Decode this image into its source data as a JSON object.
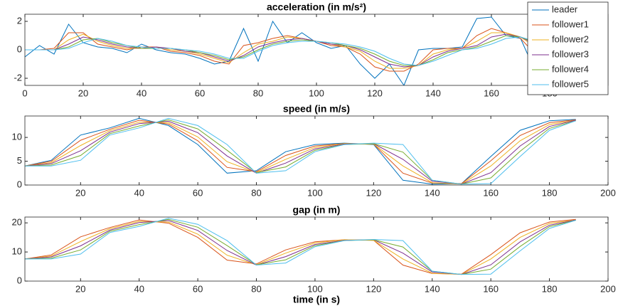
{
  "chart_data": [
    {
      "type": "line",
      "title": "acceleration (in m/s²)",
      "x": [
        0,
        5,
        10,
        15,
        20,
        25,
        30,
        35,
        40,
        45,
        50,
        55,
        60,
        65,
        70,
        75,
        80,
        85,
        90,
        95,
        100,
        105,
        110,
        115,
        120,
        125,
        130,
        135,
        140,
        145,
        150,
        155,
        160,
        165,
        170,
        175,
        180,
        185,
        188
      ],
      "xlim": [
        0,
        200
      ],
      "xticks": [
        0,
        20,
        40,
        60,
        80,
        100,
        120,
        140,
        160,
        180
      ],
      "ylim": [
        -2.5,
        2.5
      ],
      "yticks": [
        -2,
        0,
        2
      ],
      "legend": "northeast",
      "series": [
        {
          "name": "leader",
          "color": "#0072BD",
          "values": [
            -0.5,
            0.3,
            -0.3,
            1.8,
            0.5,
            0.2,
            0.1,
            -0.2,
            0.4,
            0,
            -0.2,
            -0.3,
            -0.6,
            -1,
            -0.8,
            1.5,
            -0.8,
            2,
            0.5,
            1.2,
            0.5,
            0.1,
            0.3,
            -1,
            -2,
            -1,
            -2.5,
            0,
            0.1,
            0.1,
            0.2,
            2.2,
            2.3,
            1,
            0.8,
            -1.5,
            0.5,
            0.3,
            0
          ]
        },
        {
          "name": "follower1",
          "color": "#D95319",
          "values": [
            0,
            0,
            0.1,
            1.2,
            1.2,
            0.4,
            0.2,
            0,
            0.2,
            0.2,
            -0.1,
            -0.2,
            -0.4,
            -0.8,
            -1,
            0.3,
            0.5,
            0.8,
            1,
            0.8,
            0.6,
            0.3,
            0.2,
            -0.3,
            -1.2,
            -1.5,
            -1.5,
            -1,
            0,
            0.1,
            0.1,
            1,
            1.5,
            1.2,
            0.8,
            -0.3,
            -0.2,
            0.3,
            0.1
          ]
        },
        {
          "name": "follower2",
          "color": "#EDB120",
          "values": [
            0,
            0,
            0,
            0.7,
            1.1,
            0.6,
            0.3,
            0.1,
            0.1,
            0.2,
            0,
            -0.1,
            -0.3,
            -0.6,
            -0.9,
            -0.2,
            0.4,
            0.6,
            0.9,
            0.8,
            0.6,
            0.4,
            0.2,
            -0.1,
            -0.8,
            -1.3,
            -1.3,
            -1.1,
            -0.3,
            0,
            0.1,
            0.6,
            1.2,
            1.2,
            0.9,
            0.2,
            -0.3,
            0.1,
            0.2
          ]
        },
        {
          "name": "follower3",
          "color": "#7E2F8E",
          "values": [
            0,
            0,
            0,
            0.4,
            0.9,
            0.7,
            0.4,
            0.2,
            0.1,
            0.2,
            0.1,
            -0.1,
            -0.2,
            -0.5,
            -0.8,
            -0.4,
            0.2,
            0.5,
            0.7,
            0.8,
            0.6,
            0.4,
            0.3,
            0,
            -0.5,
            -1,
            -1.2,
            -1.1,
            -0.5,
            -0.1,
            0.1,
            0.3,
            0.9,
            1.1,
            0.9,
            0.4,
            -0.1,
            0,
            0.2
          ]
        },
        {
          "name": "follower4",
          "color": "#77AC30",
          "values": [
            0,
            0,
            0,
            0.2,
            0.7,
            0.8,
            0.5,
            0.3,
            0.1,
            0.1,
            0.1,
            0,
            -0.2,
            -0.4,
            -0.7,
            -0.5,
            0,
            0.4,
            0.6,
            0.7,
            0.6,
            0.5,
            0.3,
            0.1,
            -0.3,
            -0.8,
            -1.1,
            -1.1,
            -0.7,
            -0.2,
            0,
            0.2,
            0.6,
            1,
            0.9,
            0.5,
            0.1,
            0,
            0.1
          ]
        },
        {
          "name": "follower5",
          "color": "#4DBEEE",
          "values": [
            0,
            0,
            0,
            0.1,
            0.5,
            0.8,
            0.6,
            0.3,
            0.2,
            0.1,
            0.1,
            0,
            -0.1,
            -0.3,
            -0.6,
            -0.6,
            -0.1,
            0.3,
            0.5,
            0.6,
            0.6,
            0.5,
            0.4,
            0.2,
            -0.1,
            -0.6,
            -1,
            -1.1,
            -0.8,
            -0.4,
            0,
            0.1,
            0.4,
            0.8,
            0.9,
            0.6,
            0.2,
            0,
            0.1
          ]
        }
      ]
    },
    {
      "type": "line",
      "title": "speed (in m/s)",
      "x": [
        1,
        10,
        20,
        30,
        40,
        50,
        60,
        70,
        80,
        90,
        100,
        110,
        120,
        130,
        140,
        150,
        160,
        170,
        180,
        189
      ],
      "xlim": [
        1,
        200
      ],
      "xticks": [
        20,
        40,
        60,
        80,
        100,
        120,
        140,
        160,
        180,
        200
      ],
      "ylim": [
        0,
        14.5
      ],
      "yticks": [
        0,
        5,
        10
      ],
      "series": [
        {
          "color": "#0072BD",
          "values": [
            4,
            5.2,
            10.5,
            12,
            14,
            12.5,
            8.5,
            2.5,
            3,
            7,
            8.5,
            8.8,
            8.5,
            1,
            0.2,
            0.3,
            6,
            11.5,
            13.5,
            13.8
          ]
        },
        {
          "color": "#D95319",
          "values": [
            4,
            5.0,
            9.4,
            11.7,
            13.6,
            12.8,
            9.3,
            3.7,
            2.8,
            6.2,
            8.2,
            8.7,
            8.6,
            2.5,
            0.4,
            0.3,
            5.1,
            10.4,
            13.1,
            13.7
          ]
        },
        {
          "color": "#EDB120",
          "values": [
            4,
            4.7,
            8.3,
            11.4,
            13.2,
            13.1,
            10.1,
            4.9,
            2.6,
            5.4,
            7.9,
            8.7,
            8.6,
            4.0,
            0.5,
            0.2,
            4.0,
            9.3,
            12.7,
            13.6
          ]
        },
        {
          "color": "#7E2F8E",
          "values": [
            4,
            4.5,
            7.2,
            11.1,
            12.9,
            13.4,
            11.0,
            6.1,
            2.5,
            4.6,
            7.6,
            8.6,
            8.7,
            5.4,
            0.8,
            0.2,
            2.6,
            8.2,
            12.3,
            13.6
          ]
        },
        {
          "color": "#77AC30",
          "values": [
            4,
            4.2,
            6.2,
            10.8,
            12.4,
            13.7,
            11.8,
            7.3,
            2.6,
            3.8,
            7.3,
            8.5,
            8.7,
            6.9,
            1.0,
            0.2,
            1.5,
            7.1,
            11.9,
            13.5
          ]
        },
        {
          "color": "#4DBEEE",
          "values": [
            4,
            4,
            5.2,
            10.5,
            12,
            14,
            12.5,
            8.5,
            2.5,
            3,
            7,
            8.5,
            8.8,
            8.5,
            1,
            0.2,
            0.3,
            6,
            11.5,
            13.5
          ]
        }
      ]
    },
    {
      "type": "line",
      "title": "gap (in m)",
      "x_label": "time (in s)",
      "x": [
        1,
        10,
        20,
        30,
        40,
        50,
        60,
        70,
        80,
        90,
        100,
        110,
        120,
        130,
        140,
        150,
        160,
        170,
        180,
        189
      ],
      "xlim": [
        1,
        200
      ],
      "xticks": [
        20,
        40,
        60,
        80,
        100,
        120,
        140,
        160,
        180,
        200
      ],
      "ylim": [
        0,
        22
      ],
      "yticks": [
        0,
        10,
        20
      ],
      "series": [
        {
          "color": "#D95319",
          "values": [
            7.6,
            9,
            15.2,
            18.4,
            21,
            19.9,
            15,
            7.2,
            5.9,
            10.7,
            13.5,
            14.2,
            14,
            5.5,
            2.6,
            2.4,
            9.1,
            16.6,
            20.3,
            21.2
          ]
        },
        {
          "color": "#EDB120",
          "values": [
            7.6,
            8.6,
            13.6,
            18,
            20.5,
            20.3,
            16.1,
            8.9,
            5.6,
            9.6,
            13.1,
            14.2,
            14,
            7.6,
            2.7,
            2.3,
            7.6,
            15,
            19.8,
            21
          ]
        },
        {
          "color": "#7E2F8E",
          "values": [
            7.6,
            8.3,
            12.1,
            17.5,
            20.1,
            20.8,
            17.4,
            10.5,
            5.5,
            8.4,
            12.6,
            14,
            14.2,
            9.6,
            3.1,
            2.3,
            5.6,
            13.5,
            19.2,
            21
          ]
        },
        {
          "color": "#77AC30",
          "values": [
            7.6,
            7.9,
            10.7,
            17.1,
            19.4,
            21.2,
            18.5,
            12.2,
            5.6,
            7.3,
            12.2,
            13.9,
            14.2,
            11.7,
            3.4,
            2.3,
            4.1,
            11.9,
            18.7,
            20.9
          ]
        },
        {
          "color": "#4DBEEE",
          "values": [
            7.6,
            7.6,
            9.3,
            16.7,
            18.8,
            21.6,
            19.5,
            13.9,
            5.5,
            6.2,
            11.8,
            13.9,
            14.3,
            13.9,
            3.4,
            2.3,
            2.4,
            10.4,
            18.1,
            20.9
          ]
        }
      ]
    }
  ]
}
